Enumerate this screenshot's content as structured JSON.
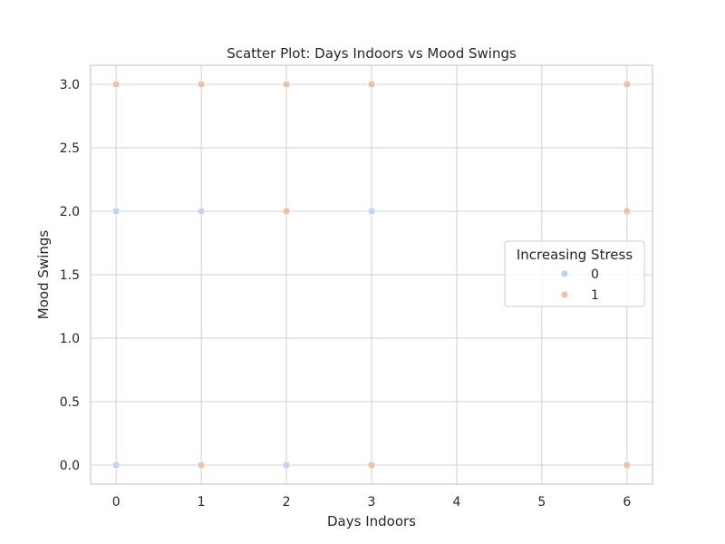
{
  "chart_data": {
    "type": "scatter",
    "title": "Scatter Plot: Days Indoors vs Mood Swings",
    "xlabel": "Days Indoors",
    "ylabel": "Mood Swings",
    "xlim": [
      -0.3,
      6.3
    ],
    "ylim": [
      -0.15,
      3.15
    ],
    "x_ticks": [
      0,
      1,
      2,
      3,
      4,
      5,
      6
    ],
    "x_tick_labels": [
      "0",
      "1",
      "2",
      "3",
      "4",
      "5",
      "6"
    ],
    "y_ticks": [
      0.0,
      0.5,
      1.0,
      1.5,
      2.0,
      2.5,
      3.0
    ],
    "y_tick_labels": [
      "0.0",
      "0.5",
      "1.0",
      "1.5",
      "2.0",
      "2.5",
      "3.0"
    ],
    "grid": true,
    "legend": {
      "title": "Increasing Stress",
      "position": "center-right"
    },
    "series": [
      {
        "name": "0",
        "color": "#c0d4f5",
        "points": [
          {
            "x": 0,
            "y": 2.0
          },
          {
            "x": 0,
            "y": 0.0
          },
          {
            "x": 1,
            "y": 2.0
          },
          {
            "x": 2,
            "y": 0.0
          },
          {
            "x": 3,
            "y": 2.0
          }
        ]
      },
      {
        "name": "1",
        "color": "#f2c0a8",
        "points": [
          {
            "x": 0,
            "y": 3.0
          },
          {
            "x": 1,
            "y": 3.0
          },
          {
            "x": 1,
            "y": 0.0
          },
          {
            "x": 2,
            "y": 3.0
          },
          {
            "x": 2,
            "y": 2.0
          },
          {
            "x": 3,
            "y": 3.0
          },
          {
            "x": 3,
            "y": 0.0
          },
          {
            "x": 6,
            "y": 3.0
          },
          {
            "x": 6,
            "y": 2.0
          },
          {
            "x": 6,
            "y": 0.0
          }
        ]
      }
    ]
  },
  "colors": {
    "grid": "#d0d0d0",
    "frame": "#cccccc",
    "text": "#262626"
  }
}
